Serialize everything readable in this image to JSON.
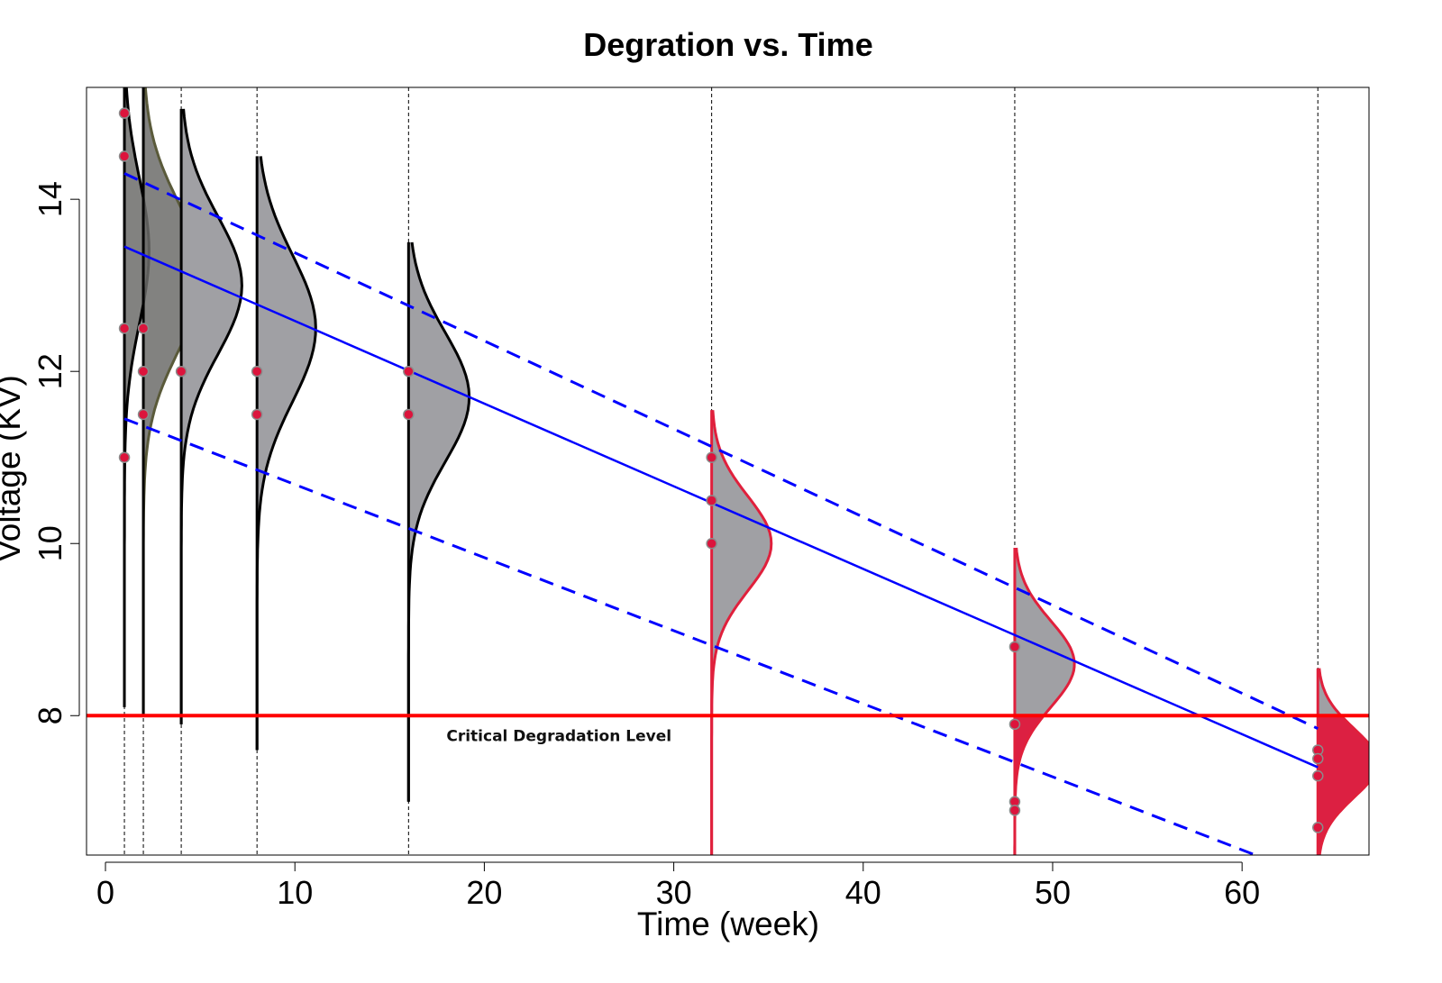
{
  "chart_data": {
    "type": "scatter",
    "title": "Degration vs. Time",
    "xlabel": "Time (week)",
    "ylabel": "Voltage (KV)",
    "xlim": [
      -1.0,
      66.7
    ],
    "ylim": [
      6.38,
      15.3
    ],
    "xticks": [
      0,
      10,
      20,
      30,
      40,
      50,
      60
    ],
    "yticks": [
      8,
      10,
      12,
      14
    ],
    "grid": false,
    "critical_level": {
      "y": 8,
      "label": "Critical Degradation Level",
      "color": "#ff0000"
    },
    "measurement_times": [
      1,
      2,
      4,
      8,
      16,
      32,
      48,
      64
    ],
    "points": [
      {
        "x": 1,
        "y": 15.0
      },
      {
        "x": 1,
        "y": 14.5
      },
      {
        "x": 1,
        "y": 12.5
      },
      {
        "x": 1,
        "y": 11.0
      },
      {
        "x": 2,
        "y": 12.5
      },
      {
        "x": 2,
        "y": 12.0
      },
      {
        "x": 2,
        "y": 11.5
      },
      {
        "x": 4,
        "y": 12.0
      },
      {
        "x": 8,
        "y": 12.0
      },
      {
        "x": 8,
        "y": 11.5
      },
      {
        "x": 16,
        "y": 12.0
      },
      {
        "x": 16,
        "y": 11.5
      },
      {
        "x": 32,
        "y": 11.0
      },
      {
        "x": 32,
        "y": 10.5
      },
      {
        "x": 32,
        "y": 10.0
      },
      {
        "x": 48,
        "y": 8.8
      },
      {
        "x": 48,
        "y": 7.9
      },
      {
        "x": 48,
        "y": 7.0
      },
      {
        "x": 48,
        "y": 6.9
      },
      {
        "x": 64,
        "y": 7.6
      },
      {
        "x": 64,
        "y": 7.5
      },
      {
        "x": 64,
        "y": 7.3
      },
      {
        "x": 64,
        "y": 6.7
      }
    ],
    "regression": {
      "start": {
        "x": 1,
        "y": 13.45
      },
      "end": {
        "x": 64,
        "y": 7.4
      },
      "color": "#0000ff"
    },
    "upper_band": {
      "start": {
        "x": 1,
        "y": 14.3
      },
      "end": {
        "x": 64,
        "y": 7.85
      },
      "color": "#0000ff"
    },
    "lower_band": {
      "start": {
        "x": 1,
        "y": 11.45
      },
      "end": {
        "x": 64,
        "y": 6.1
      },
      "color": "#0000ff"
    },
    "densities": [
      {
        "x": 1,
        "mean": 13.4,
        "sd": 0.85,
        "width": 1.3,
        "ylow": 8.1,
        "yhigh": 15.3
      },
      {
        "x": 2,
        "mean": 13.1,
        "sd": 0.85,
        "width": 3.1,
        "ylow": 8.0,
        "yhigh": 15.3
      },
      {
        "x": 4,
        "mean": 13.0,
        "sd": 0.8,
        "width": 3.2,
        "ylow": 7.9,
        "yhigh": 15.05
      },
      {
        "x": 8,
        "mean": 12.5,
        "sd": 0.85,
        "width": 3.1,
        "ylow": 7.6,
        "yhigh": 14.5
      },
      {
        "x": 16,
        "mean": 11.7,
        "sd": 0.75,
        "width": 3.2,
        "ylow": 7.0,
        "yhigh": 13.5
      },
      {
        "x": 32,
        "mean": 10.0,
        "sd": 0.55,
        "width": 3.15,
        "ylow": 6.38,
        "yhigh": 11.55
      },
      {
        "x": 48,
        "mean": 8.6,
        "sd": 0.5,
        "width": 3.15,
        "ylow": 6.38,
        "yhigh": 9.95
      },
      {
        "x": 64,
        "mean": 7.45,
        "sd": 0.4,
        "width": 3.15,
        "ylow": 6.38,
        "yhigh": 8.55
      }
    ],
    "colors": {
      "density_fill": "#a0a0a4",
      "density_fill_dark": "#6c6c6a",
      "density_edge": "#000000",
      "density_edge_late": "#e0203c",
      "failure_fill": "#dc2042",
      "point_fill": "#dc143c",
      "point_edge": "#8b8b8b"
    }
  }
}
